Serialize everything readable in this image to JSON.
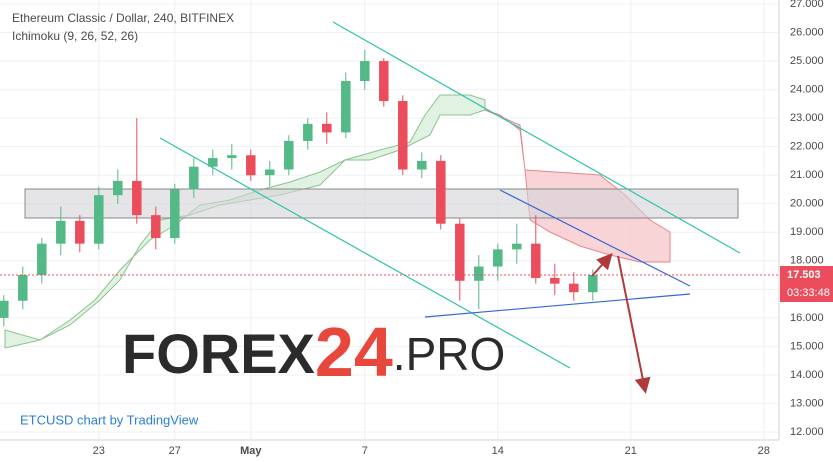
{
  "chart_data": {
    "type": "candlestick",
    "title": "Ethereum Classic / Dollar, 240, BITFINEX",
    "subtitle": "Ichimoku (9, 26, 52, 26)",
    "credit": "ETCUSD chart by TradingView",
    "watermark": {
      "part1": "FOREX",
      "part2": "24",
      "part3": ".PRO"
    },
    "up_color": "#53b987",
    "down_color": "#eb4d5c",
    "x": [
      -2,
      -1,
      0,
      1,
      2,
      3,
      4,
      5,
      6,
      7,
      8,
      9,
      10,
      11,
      12,
      13,
      14,
      15,
      16,
      17,
      18,
      19,
      20,
      21,
      22,
      23,
      24,
      25,
      26,
      27,
      28,
      29
    ],
    "open": [
      16.0,
      16.6,
      17.5,
      18.6,
      19.4,
      18.6,
      20.3,
      20.8,
      19.6,
      18.8,
      20.5,
      21.3,
      21.6,
      21.7,
      21.0,
      21.2,
      22.2,
      22.8,
      22.5,
      24.3,
      25.0,
      23.6,
      21.2,
      21.5,
      19.3,
      17.3,
      17.8,
      18.4,
      18.6,
      17.4,
      17.2,
      16.9
    ],
    "high": [
      16.8,
      17.8,
      18.8,
      19.9,
      19.6,
      20.6,
      21.2,
      23.0,
      19.9,
      20.7,
      21.6,
      21.9,
      22.1,
      21.9,
      21.5,
      22.4,
      23.0,
      23.2,
      24.6,
      25.4,
      25.1,
      23.8,
      21.8,
      21.7,
      19.5,
      18.2,
      18.6,
      19.3,
      19.6,
      17.9,
      17.6,
      17.7
    ],
    "low": [
      15.7,
      16.3,
      17.2,
      18.2,
      18.3,
      18.4,
      20.0,
      19.3,
      18.4,
      18.6,
      20.2,
      21.0,
      21.2,
      20.8,
      20.6,
      21.0,
      21.9,
      22.1,
      22.3,
      24.0,
      23.4,
      21.0,
      20.9,
      19.1,
      16.6,
      16.3,
      17.3,
      17.9,
      17.2,
      16.8,
      16.6,
      16.6
    ],
    "close": [
      16.6,
      17.5,
      18.6,
      19.4,
      18.6,
      20.3,
      20.8,
      19.6,
      18.8,
      20.5,
      21.3,
      21.6,
      21.7,
      21.0,
      21.2,
      22.2,
      22.8,
      22.5,
      24.3,
      25.0,
      23.6,
      21.2,
      21.5,
      19.3,
      17.3,
      17.8,
      18.4,
      18.6,
      17.4,
      17.2,
      16.9,
      17.503
    ],
    "last_price": 17.503,
    "countdown": "03:33:48",
    "xlim": [
      -2.2,
      38.8
    ],
    "xticks": [
      {
        "value": 3,
        "label": "23"
      },
      {
        "value": 7,
        "label": "27"
      },
      {
        "value": 11,
        "label": "May"
      },
      {
        "value": 17,
        "label": "7"
      },
      {
        "value": 24,
        "label": "14"
      },
      {
        "value": 31,
        "label": "21"
      },
      {
        "value": 38,
        "label": "28"
      }
    ],
    "ylim": [
      11.72,
      27.14
    ],
    "yticks": [
      {
        "value": 12,
        "label": "12.000"
      },
      {
        "value": 13,
        "label": "13.000"
      },
      {
        "value": 14,
        "label": "14.000"
      },
      {
        "value": 15,
        "label": "15.000"
      },
      {
        "value": 16,
        "label": "16.000"
      },
      {
        "value": 17,
        "label": "17.000"
      },
      {
        "value": 18,
        "label": "18.000"
      },
      {
        "value": 19,
        "label": "19.000"
      },
      {
        "value": 20,
        "label": "20.000"
      },
      {
        "value": 21,
        "label": "21.000"
      },
      {
        "value": 22,
        "label": "22.000"
      },
      {
        "value": 23,
        "label": "23.000"
      },
      {
        "value": 24,
        "label": "24.000"
      },
      {
        "value": 25,
        "label": "25.000"
      },
      {
        "value": 26,
        "label": "26.000"
      },
      {
        "value": 27,
        "label": "27.000"
      }
    ],
    "grid": true
  }
}
